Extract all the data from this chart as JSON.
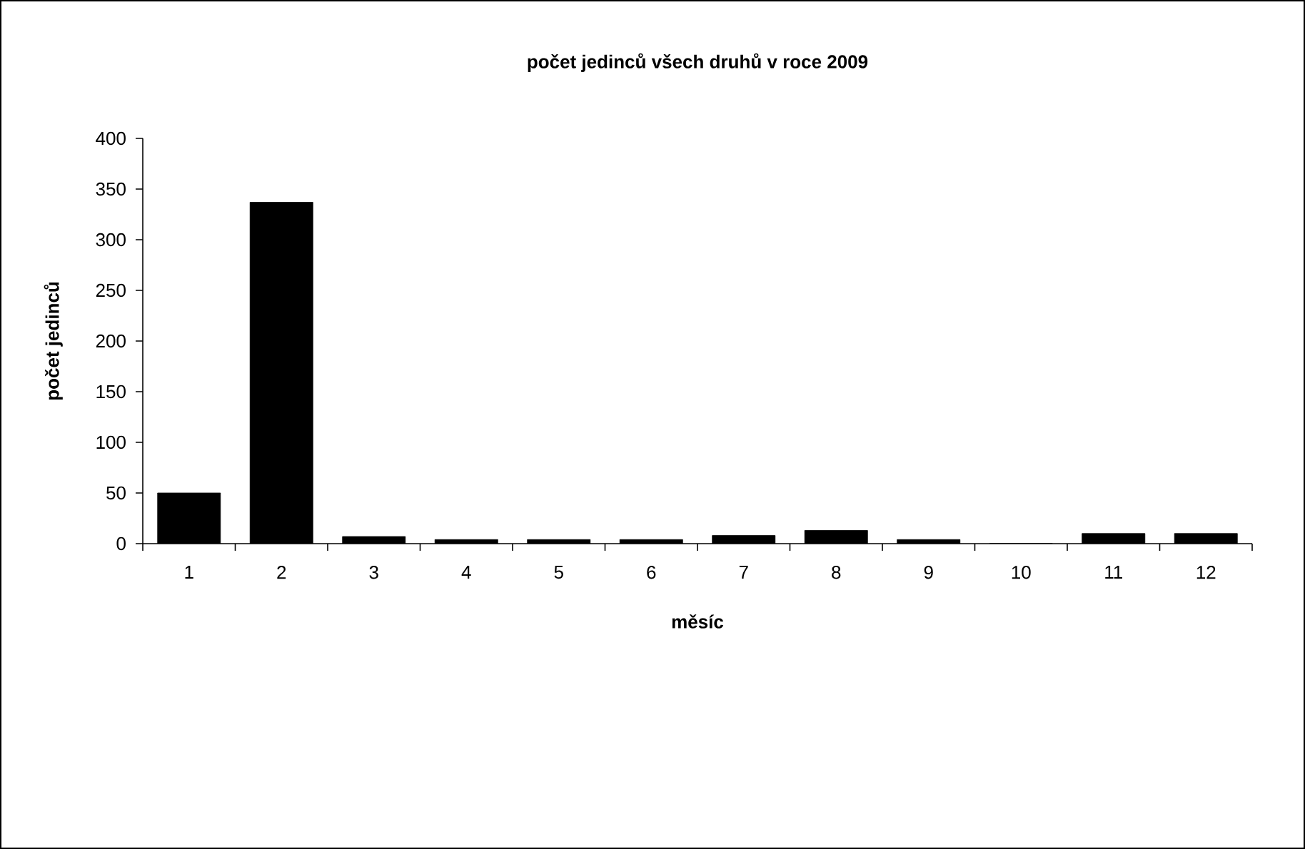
{
  "chart_data": {
    "type": "bar",
    "title": "počet jedinců všech druhů v roce 2009",
    "xlabel": "měsíc",
    "ylabel": "počet jedinců",
    "categories": [
      "1",
      "2",
      "3",
      "4",
      "5",
      "6",
      "7",
      "8",
      "9",
      "10",
      "11",
      "12"
    ],
    "values": [
      50,
      337,
      7,
      4,
      4,
      4,
      8,
      13,
      4,
      0,
      10,
      10
    ],
    "color": "#000000",
    "ylim": [
      0,
      400
    ],
    "yticks": [
      0,
      50,
      100,
      150,
      200,
      250,
      300,
      350,
      400
    ],
    "grid": false
  }
}
